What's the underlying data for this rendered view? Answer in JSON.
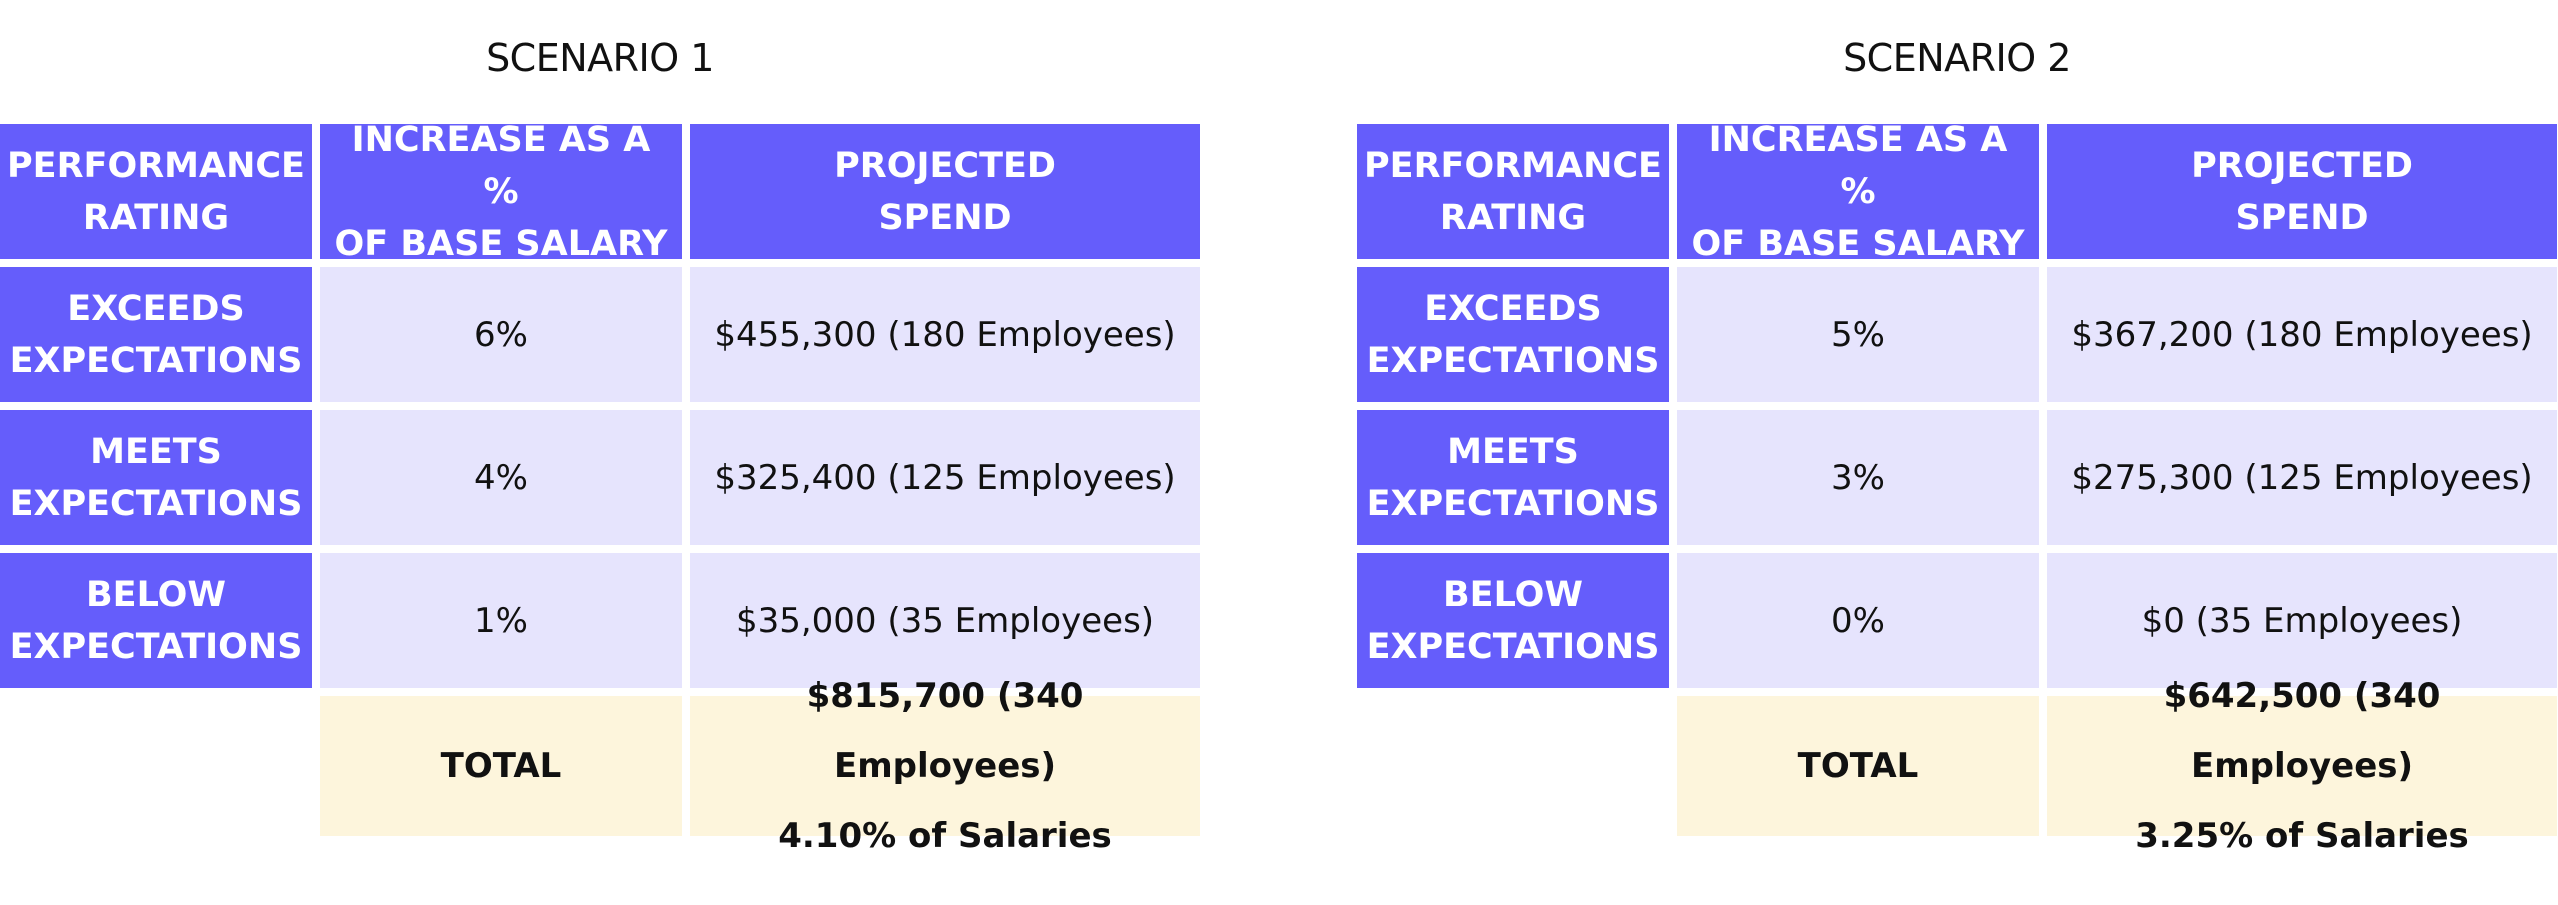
{
  "scenarios": [
    {
      "title": "SCENARIO 1",
      "header": [
        "PERFORMANCE\nRATING",
        "INCREASE AS A %\nOF BASE SALARY",
        "PROJECTED\nSPEND"
      ],
      "rows": [
        [
          "EXCEEDS\nEXPECTATIONS",
          "6%",
          "$455,300 (180 Employees)"
        ],
        [
          "MEETS\nEXPECTATIONS",
          "4%",
          "$325,400 (125 Employees)"
        ],
        [
          "BELOW\nEXPECTATIONS",
          "1%",
          "$35,000 (35 Employees)"
        ]
      ],
      "total": {
        "label": "TOTAL",
        "spend": "$815,700 (340 Employees)",
        "percent": "4.10% of Salaries"
      }
    },
    {
      "title": "SCENARIO 2",
      "header": [
        "PERFORMANCE\nRATING",
        "INCREASE AS A %\nOF BASE SALARY",
        "PROJECTED\nSPEND"
      ],
      "rows": [
        [
          "EXCEEDS\nEXPECTATIONS",
          "5%",
          "$367,200 (180 Employees)"
        ],
        [
          "MEETS\nEXPECTATIONS",
          "3%",
          "$275,300 (125 Employees)"
        ],
        [
          "BELOW\nEXPECTATIONS",
          "0%",
          "$0 (35 Employees)"
        ]
      ],
      "total": {
        "label": "TOTAL",
        "spend": "$642,500 (340 Employees)",
        "percent": "3.25% of Salaries"
      }
    }
  ]
}
